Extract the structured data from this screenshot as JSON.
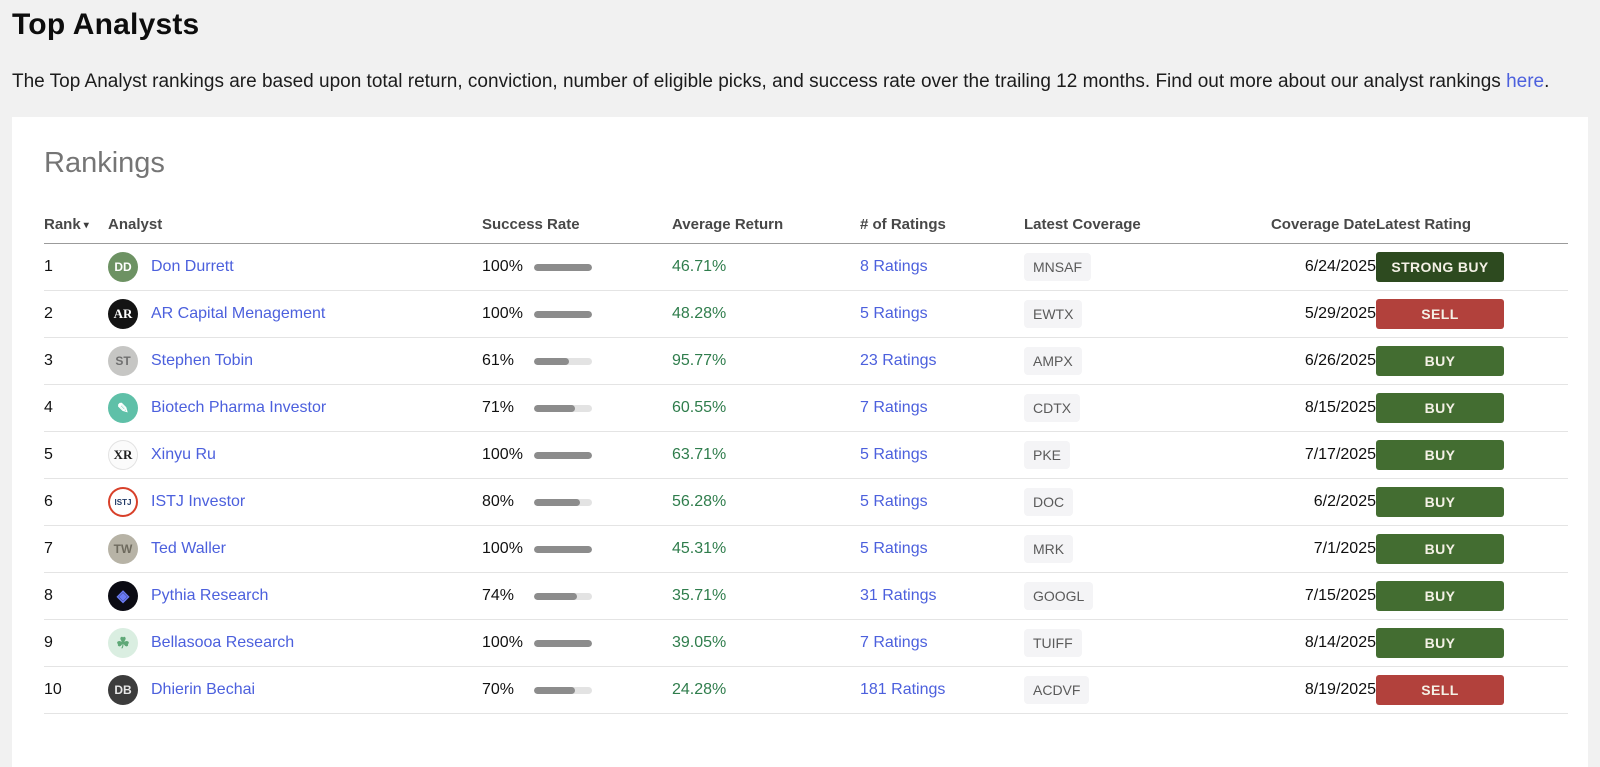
{
  "page": {
    "title": "Top Analysts",
    "description_text": "The Top Analyst rankings are based upon total return, conviction, number of eligible picks, and success rate over the trailing 12 months. Find out more about our analyst rankings ",
    "description_link_text": "here",
    "description_suffix": "."
  },
  "card": {
    "heading": "Rankings"
  },
  "table": {
    "headers": {
      "rank": "Rank",
      "sort_indicator": "▾",
      "analyst": "Analyst",
      "success_rate": "Success Rate",
      "average_return": "Average Return",
      "num_ratings": "# of Ratings",
      "latest_coverage": "Latest Coverage",
      "coverage_date": "Coverage Date",
      "latest_rating": "Latest Rating"
    },
    "rows": [
      {
        "rank": "1",
        "analyst": "Don Durrett",
        "avatar": {
          "label": "DD",
          "bg": "#6d9263",
          "fg": "#ffffff"
        },
        "success_rate": "100%",
        "success_pct": 100,
        "average_return": "46.71%",
        "ratings": "8 Ratings",
        "ticker": "MNSAF",
        "date": "6/24/2025",
        "rating": "STRONG BUY",
        "rating_type": "strong_buy"
      },
      {
        "rank": "2",
        "analyst": "AR Capital Menagement",
        "avatar": {
          "label": "AR",
          "bg": "#141414",
          "fg": "#ffffff",
          "serif": true,
          "font_size": 13
        },
        "success_rate": "100%",
        "success_pct": 100,
        "average_return": "48.28%",
        "ratings": "5 Ratings",
        "ticker": "EWTX",
        "date": "5/29/2025",
        "rating": "SELL",
        "rating_type": "sell"
      },
      {
        "rank": "3",
        "analyst": "Stephen Tobin",
        "avatar": {
          "label": "ST",
          "bg": "#c6c6c4",
          "fg": "#6f6f6f"
        },
        "success_rate": "61%",
        "success_pct": 61,
        "average_return": "95.77%",
        "ratings": "23 Ratings",
        "ticker": "AMPX",
        "date": "6/26/2025",
        "rating": "BUY",
        "rating_type": "buy"
      },
      {
        "rank": "4",
        "analyst": "Biotech Pharma Investor",
        "avatar": {
          "label": "✎",
          "bg": "#5fc0a8",
          "fg": "#ffffff",
          "font_size": 14
        },
        "success_rate": "71%",
        "success_pct": 71,
        "average_return": "60.55%",
        "ratings": "7 Ratings",
        "ticker": "CDTX",
        "date": "8/15/2025",
        "rating": "BUY",
        "rating_type": "buy"
      },
      {
        "rank": "5",
        "analyst": "Xinyu Ru",
        "avatar": {
          "label": "XR",
          "bg": "#fbfbfb",
          "fg": "#1e1e1e",
          "serif": true,
          "font_size": 13,
          "border": "#e3e3e3"
        },
        "success_rate": "100%",
        "success_pct": 100,
        "average_return": "63.71%",
        "ratings": "5 Ratings",
        "ticker": "PKE",
        "date": "7/17/2025",
        "rating": "BUY",
        "rating_type": "buy"
      },
      {
        "rank": "6",
        "analyst": "ISTJ Investor",
        "avatar": {
          "label": "ISTJ",
          "bg": "#ffffff",
          "fg": "#223a66",
          "font_size": 8,
          "ring": "#d8402a"
        },
        "success_rate": "80%",
        "success_pct": 80,
        "average_return": "56.28%",
        "ratings": "5 Ratings",
        "ticker": "DOC",
        "date": "6/2/2025",
        "rating": "BUY",
        "rating_type": "buy"
      },
      {
        "rank": "7",
        "analyst": "Ted Waller",
        "avatar": {
          "label": "TW",
          "bg": "#b7b3a6",
          "fg": "#6e6a5e"
        },
        "success_rate": "100%",
        "success_pct": 100,
        "average_return": "45.31%",
        "ratings": "5 Ratings",
        "ticker": "MRK",
        "date": "7/1/2025",
        "rating": "BUY",
        "rating_type": "buy"
      },
      {
        "rank": "8",
        "analyst": "Pythia Research",
        "avatar": {
          "label": "◈",
          "bg": "#0b0b13",
          "fg": "#6b7cf5",
          "font_size": 16
        },
        "success_rate": "74%",
        "success_pct": 74,
        "average_return": "35.71%",
        "ratings": "31 Ratings",
        "ticker": "GOOGL",
        "date": "7/15/2025",
        "rating": "BUY",
        "rating_type": "buy"
      },
      {
        "rank": "9",
        "analyst": "Bellasooa Research",
        "avatar": {
          "label": "☘",
          "bg": "#daeee1",
          "fg": "#5fa877",
          "font_size": 15
        },
        "success_rate": "100%",
        "success_pct": 100,
        "average_return": "39.05%",
        "ratings": "7 Ratings",
        "ticker": "TUIFF",
        "date": "8/14/2025",
        "rating": "BUY",
        "rating_type": "buy"
      },
      {
        "rank": "10",
        "analyst": "Dhierin Bechai",
        "avatar": {
          "label": "DB",
          "bg": "#3c3c3c",
          "fg": "#e8e8e8"
        },
        "success_rate": "70%",
        "success_pct": 70,
        "average_return": "24.28%",
        "ratings": "181 Ratings",
        "ticker": "ACDVF",
        "date": "8/19/2025",
        "rating": "SELL",
        "rating_type": "sell"
      }
    ]
  },
  "colors": {
    "link": "#4c60dd",
    "positive_return": "#2f7d4c",
    "ratings": {
      "strong_buy": "#2d4a1f",
      "buy": "#436d31",
      "sell": "#b2413c"
    },
    "ticker_bg": "#f4f4f6",
    "page_bg": "#f1f1f1",
    "card_bg": "#ffffff"
  }
}
